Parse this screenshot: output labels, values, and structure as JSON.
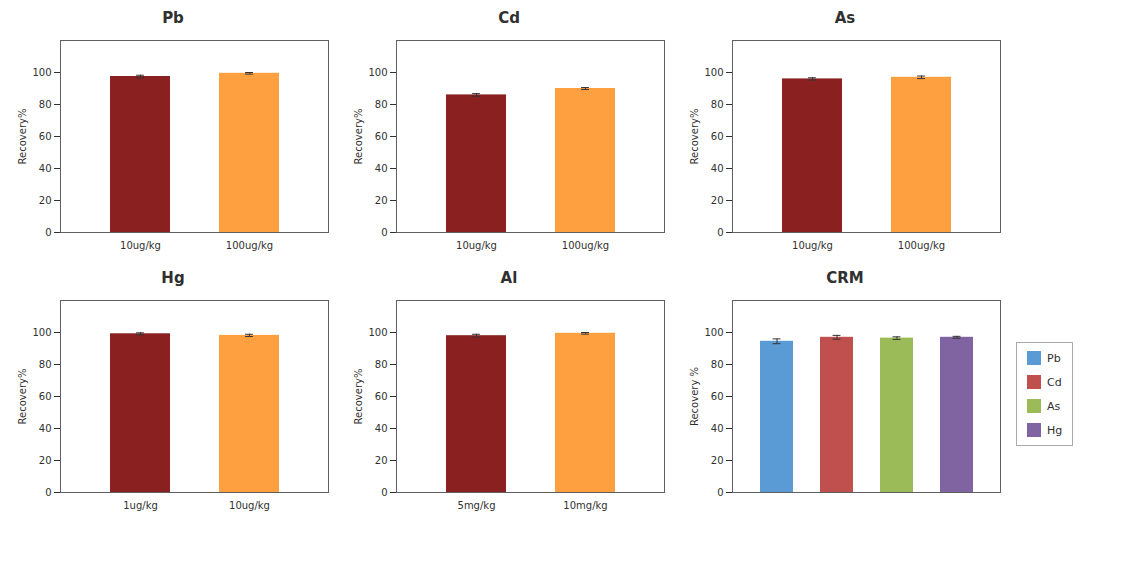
{
  "chart_data": [
    {
      "type": "bar",
      "title": "Pb",
      "categories": [
        "10ug/kg",
        "100ug/kg"
      ],
      "values": [
        97.5,
        99.5
      ],
      "errors": [
        0.8,
        0.5
      ],
      "colors": [
        "#8B2020",
        "#FFA040"
      ],
      "ylabel": "Recovery%",
      "ylim": [
        0,
        120
      ],
      "yticks": [
        0,
        20,
        40,
        60,
        80,
        100
      ]
    },
    {
      "type": "bar",
      "title": "Cd",
      "categories": [
        "10ug/kg",
        "100ug/kg"
      ],
      "values": [
        86.0,
        90.0
      ],
      "errors": [
        0.8,
        0.6
      ],
      "colors": [
        "#8B2020",
        "#FFA040"
      ],
      "ylabel": "Recovery%",
      "ylim": [
        0,
        120
      ],
      "yticks": [
        0,
        20,
        40,
        60,
        80,
        100
      ]
    },
    {
      "type": "bar",
      "title": "As",
      "categories": [
        "10ug/kg",
        "100ug/kg"
      ],
      "values": [
        96.0,
        97.0
      ],
      "errors": [
        0.7,
        0.8
      ],
      "colors": [
        "#8B2020",
        "#FFA040"
      ],
      "ylabel": "Recovery%",
      "ylim": [
        0,
        120
      ],
      "yticks": [
        0,
        20,
        40,
        60,
        80,
        100
      ]
    },
    {
      "type": "bar",
      "title": "Hg",
      "categories": [
        "1ug/kg",
        "10ug/kg"
      ],
      "values": [
        99.2,
        98.2
      ],
      "errors": [
        0.6,
        0.7
      ],
      "colors": [
        "#8B2020",
        "#FFA040"
      ],
      "ylabel": "Recovery%",
      "ylim": [
        0,
        120
      ],
      "yticks": [
        0,
        20,
        40,
        60,
        80,
        100
      ]
    },
    {
      "type": "bar",
      "title": "Al",
      "categories": [
        "5mg/kg",
        "10mg/kg"
      ],
      "values": [
        98.0,
        99.5
      ],
      "errors": [
        0.9,
        0.5
      ],
      "colors": [
        "#8B2020",
        "#FFA040"
      ],
      "ylabel": "Recovery%",
      "ylim": [
        0,
        120
      ],
      "yticks": [
        0,
        20,
        40,
        60,
        80,
        100
      ]
    },
    {
      "type": "bar",
      "title": "CRM",
      "categories": [
        "Pb",
        "Cd",
        "As",
        "Hg"
      ],
      "values": [
        94.5,
        97.0,
        96.5,
        97.0
      ],
      "errors": [
        1.5,
        1.2,
        0.8,
        0.6
      ],
      "colors": [
        "#5B9BD5",
        "#C0504D",
        "#9BBB59",
        "#8064A2"
      ],
      "ylabel": "Recovery %",
      "ylim": [
        0,
        120
      ],
      "yticks": [
        0,
        20,
        40,
        60,
        80,
        100
      ],
      "tick_labels": "y",
      "legend": "right"
    }
  ]
}
